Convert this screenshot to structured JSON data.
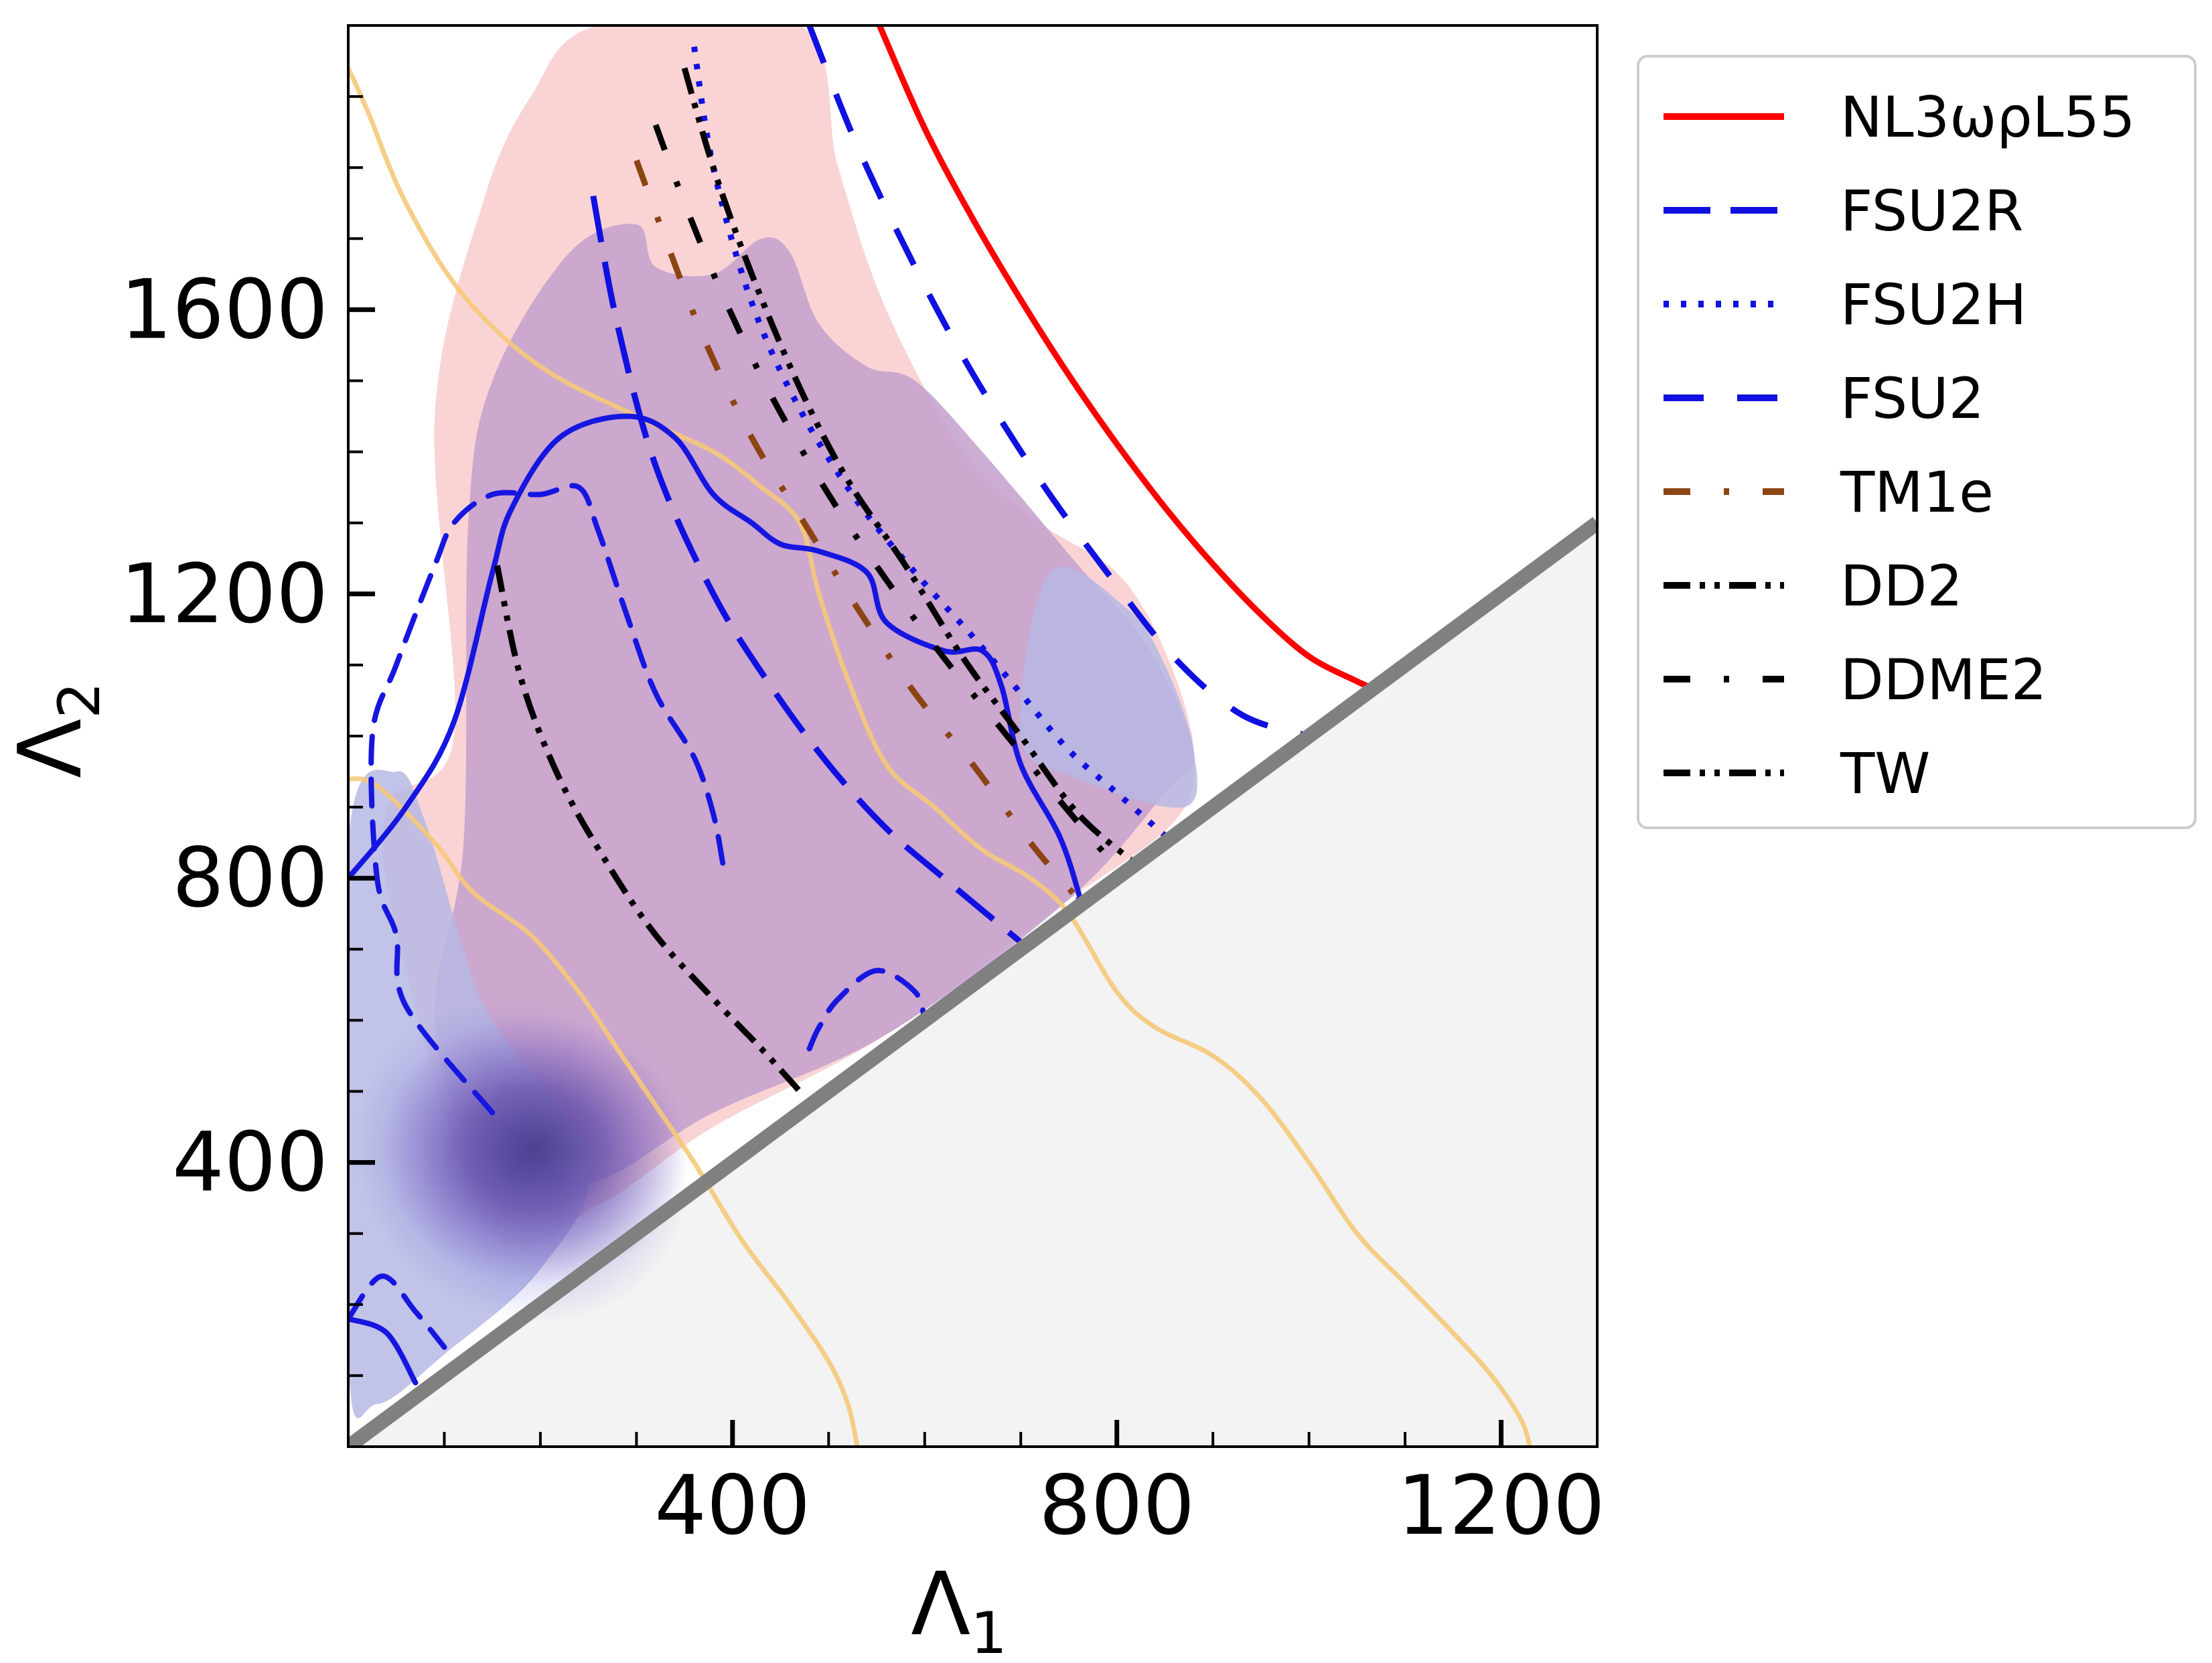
{
  "chart_data": {
    "type": "line",
    "xlabel": "Λ",
    "xlabel_sub": "1",
    "ylabel": "Λ",
    "ylabel_sub": "2",
    "xlim": [
      0,
      1300
    ],
    "ylim": [
      0,
      2000
    ],
    "xticks": [
      400,
      800,
      1200
    ],
    "yticks": [
      400,
      800,
      1200,
      1600
    ],
    "xtick_labels": [
      "400",
      "800",
      "1200"
    ],
    "ytick_labels": [
      "400",
      "800",
      "1200",
      "1600"
    ],
    "grid": false,
    "legend_position": "outside-right",
    "excluded_region": {
      "description_color": "#f3f3f3",
      "boundary": [
        [
          0,
          0
        ],
        [
          1300,
          1300
        ]
      ],
      "boundary_color": "#808080"
    },
    "shaded_regions": [
      {
        "color": "#f7b9bb",
        "points": [
          [
            110,
            1000
          ],
          [
            90,
            1450
          ],
          [
            140,
            1750
          ],
          [
            190,
            1900
          ],
          [
            260,
            2000
          ],
          [
            470,
            2000
          ],
          [
            510,
            1800
          ],
          [
            560,
            1600
          ],
          [
            640,
            1400
          ],
          [
            720,
            1300
          ],
          [
            800,
            1230
          ],
          [
            850,
            1120
          ],
          [
            880,
            980
          ],
          [
            860,
            880
          ],
          [
            740,
            760
          ],
          [
            560,
            580
          ],
          [
            380,
            450
          ],
          [
            260,
            340
          ],
          [
            150,
            300
          ],
          [
            55,
            700
          ],
          [
            40,
            900
          ]
        ]
      },
      {
        "color": "#c39fcd",
        "points": [
          [
            120,
            850
          ],
          [
            125,
            1300
          ],
          [
            150,
            1500
          ],
          [
            230,
            1680
          ],
          [
            300,
            1720
          ],
          [
            320,
            1660
          ],
          [
            380,
            1650
          ],
          [
            430,
            1700
          ],
          [
            460,
            1680
          ],
          [
            490,
            1580
          ],
          [
            540,
            1520
          ],
          [
            590,
            1500
          ],
          [
            660,
            1400
          ],
          [
            760,
            1240
          ],
          [
            830,
            1130
          ],
          [
            880,
            980
          ],
          [
            850,
            920
          ],
          [
            750,
            770
          ],
          [
            560,
            580
          ],
          [
            380,
            470
          ],
          [
            250,
            370
          ],
          [
            140,
            400
          ],
          [
            90,
            600
          ]
        ]
      },
      {
        "color": "#b6b8e4",
        "points": [
          [
            0,
            850
          ],
          [
            50,
            950
          ],
          [
            80,
            880
          ],
          [
            120,
            700
          ],
          [
            150,
            600
          ],
          [
            250,
            400
          ],
          [
            200,
            250
          ],
          [
            100,
            130
          ],
          [
            30,
            60
          ],
          [
            0,
            120
          ]
        ]
      },
      {
        "color": "#b6b8e4",
        "points": [
          [
            730,
            1230
          ],
          [
            810,
            1180
          ],
          [
            850,
            1100
          ],
          [
            880,
            980
          ],
          [
            870,
            900
          ],
          [
            760,
            940
          ],
          [
            700,
            1000
          ]
        ]
      }
    ],
    "density_peak": {
      "x": 180,
      "y": 400,
      "color": "#4a3f8f"
    },
    "contours": [
      {
        "color": "#1616e0",
        "style": "solid",
        "points": [
          [
            0,
            800
          ],
          [
            60,
            900
          ],
          [
            110,
            1020
          ],
          [
            150,
            1230
          ],
          [
            170,
            1320
          ],
          [
            220,
            1420
          ],
          [
            290,
            1450
          ],
          [
            340,
            1420
          ],
          [
            380,
            1340
          ],
          [
            420,
            1300
          ],
          [
            450,
            1270
          ],
          [
            490,
            1260
          ],
          [
            540,
            1230
          ],
          [
            560,
            1160
          ],
          [
            620,
            1120
          ],
          [
            660,
            1120
          ],
          [
            680,
            1070
          ],
          [
            700,
            960
          ],
          [
            740,
            860
          ],
          [
            760,
            780
          ],
          [
            760,
            770
          ]
        ]
      },
      {
        "color": "#1616e0",
        "style": "solid",
        "points": [
          [
            0,
            180
          ],
          [
            40,
            160
          ],
          [
            70,
            90
          ]
        ]
      },
      {
        "color": "#1616e0",
        "style": "dashed",
        "points": [
          [
            150,
            470
          ],
          [
            60,
            620
          ],
          [
            50,
            720
          ],
          [
            30,
            800
          ],
          [
            25,
            1000
          ],
          [
            50,
            1100
          ],
          [
            90,
            1240
          ],
          [
            110,
            1300
          ],
          [
            150,
            1340
          ],
          [
            200,
            1340
          ],
          [
            240,
            1350
          ],
          [
            260,
            1290
          ],
          [
            290,
            1170
          ],
          [
            320,
            1060
          ],
          [
            360,
            970
          ],
          [
            380,
            890
          ],
          [
            390,
            820
          ]
        ]
      },
      {
        "color": "#1616e0",
        "style": "dashed",
        "points": [
          [
            480,
            560
          ],
          [
            490,
            590
          ],
          [
            510,
            630
          ],
          [
            550,
            670
          ],
          [
            590,
            640
          ],
          [
            600,
            600
          ]
        ]
      },
      {
        "color": "#1616e0",
        "style": "dashed",
        "points": [
          [
            0,
            180
          ],
          [
            35,
            240
          ],
          [
            70,
            190
          ],
          [
            100,
            140
          ]
        ]
      }
    ],
    "overlay_contours": [
      {
        "color": "#f5c97a",
        "points": [
          [
            0,
            1940
          ],
          [
            20,
            1880
          ],
          [
            60,
            1750
          ],
          [
            120,
            1620
          ],
          [
            200,
            1520
          ],
          [
            300,
            1450
          ],
          [
            380,
            1400
          ],
          [
            430,
            1350
          ],
          [
            470,
            1300
          ],
          [
            490,
            1200
          ],
          [
            520,
            1080
          ],
          [
            560,
            960
          ],
          [
            610,
            900
          ],
          [
            660,
            840
          ],
          [
            710,
            800
          ],
          [
            750,
            750
          ],
          [
            800,
            640
          ],
          [
            840,
            590
          ],
          [
            900,
            550
          ],
          [
            950,
            490
          ],
          [
            1000,
            400
          ],
          [
            1050,
            300
          ],
          [
            1100,
            230
          ],
          [
            1150,
            160
          ],
          [
            1190,
            100
          ],
          [
            1220,
            40
          ],
          [
            1230,
            0
          ]
        ]
      },
      {
        "color": "#f5c97a",
        "points": [
          [
            0,
            940
          ],
          [
            30,
            930
          ],
          [
            90,
            850
          ],
          [
            130,
            780
          ],
          [
            190,
            720
          ],
          [
            240,
            640
          ],
          [
            280,
            560
          ],
          [
            320,
            480
          ],
          [
            360,
            400
          ],
          [
            410,
            290
          ],
          [
            460,
            200
          ],
          [
            500,
            120
          ],
          [
            520,
            60
          ],
          [
            530,
            0
          ]
        ]
      }
    ],
    "series": [
      {
        "name": "NL3ωρL55",
        "color": "#ff0000",
        "dash": "",
        "points": [
          [
            553,
            2000
          ],
          [
            600,
            1855
          ],
          [
            650,
            1728
          ],
          [
            700,
            1614
          ],
          [
            750,
            1508
          ],
          [
            800,
            1411
          ],
          [
            850,
            1322
          ],
          [
            900,
            1242
          ],
          [
            950,
            1171
          ],
          [
            1000,
            1112
          ],
          [
            1050,
            1077
          ],
          [
            1067,
            1067
          ]
        ]
      },
      {
        "name": "FSU2R",
        "color": "#1010e0",
        "dash": "70,30",
        "points": [
          [
            255,
            1760
          ],
          [
            280,
            1580
          ],
          [
            320,
            1380
          ],
          [
            380,
            1200
          ],
          [
            440,
            1070
          ],
          [
            500,
            960
          ],
          [
            560,
            870
          ],
          [
            620,
            800
          ],
          [
            700,
            710
          ]
        ]
      },
      {
        "name": "FSU2H",
        "color": "#1010e0",
        "dash": "8,18",
        "points": [
          [
            360,
            1970
          ],
          [
            380,
            1800
          ],
          [
            420,
            1610
          ],
          [
            470,
            1460
          ],
          [
            530,
            1330
          ],
          [
            590,
            1230
          ],
          [
            650,
            1140
          ],
          [
            700,
            1060
          ],
          [
            750,
            980
          ],
          [
            800,
            920
          ],
          [
            850,
            860
          ]
        ]
      },
      {
        "name": "FSU2",
        "color": "#1010e0",
        "dash": "60,50",
        "points": [
          [
            480,
            2000
          ],
          [
            530,
            1830
          ],
          [
            590,
            1660
          ],
          [
            650,
            1510
          ],
          [
            720,
            1360
          ],
          [
            790,
            1230
          ],
          [
            860,
            1110
          ],
          [
            930,
            1030
          ],
          [
            1000,
            1000
          ]
        ]
      },
      {
        "name": "TM1e",
        "color": "#8b4513",
        "dash": "40,50,8,50",
        "points": [
          [
            300,
            1810
          ],
          [
            330,
            1700
          ],
          [
            370,
            1560
          ],
          [
            420,
            1420
          ],
          [
            470,
            1310
          ],
          [
            530,
            1180
          ],
          [
            590,
            1060
          ],
          [
            650,
            960
          ],
          [
            710,
            850
          ],
          [
            760,
            770
          ]
        ]
      },
      {
        "name": "DD2",
        "color": "#000000",
        "dash": "40,14,8,14,8,14",
        "points": [
          [
            350,
            1940
          ],
          [
            380,
            1800
          ],
          [
            420,
            1650
          ],
          [
            470,
            1490
          ],
          [
            520,
            1360
          ],
          [
            580,
            1240
          ],
          [
            640,
            1110
          ],
          [
            700,
            1000
          ],
          [
            760,
            890
          ],
          [
            820,
            820
          ]
        ]
      },
      {
        "name": "DDME2",
        "color": "#000000",
        "dash": "40,50,8,50",
        "points": [
          [
            320,
            1860
          ],
          [
            350,
            1750
          ],
          [
            390,
            1620
          ],
          [
            440,
            1480
          ],
          [
            500,
            1340
          ],
          [
            560,
            1220
          ],
          [
            620,
            1110
          ],
          [
            680,
            1010
          ],
          [
            740,
            910
          ],
          [
            790,
            830
          ]
        ]
      },
      {
        "name": "TW",
        "color": "#000000",
        "dash": "40,14,8,14,8,14",
        "points": [
          [
            155,
            1240
          ],
          [
            180,
            1080
          ],
          [
            220,
            940
          ],
          [
            270,
            820
          ],
          [
            320,
            720
          ],
          [
            380,
            630
          ],
          [
            430,
            560
          ],
          [
            470,
            500
          ]
        ]
      }
    ]
  }
}
